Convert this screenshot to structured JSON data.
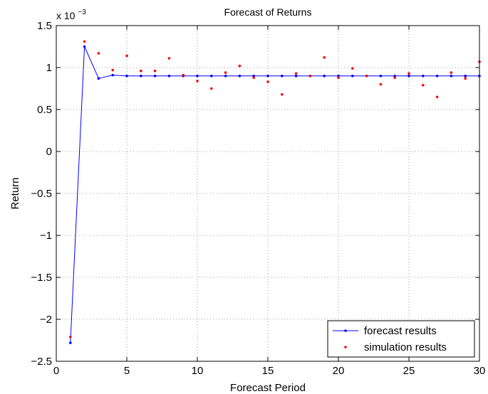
{
  "chart_data": {
    "type": "line",
    "title": "Forecast of Returns",
    "xlabel": "Forecast Period",
    "ylabel": "Return",
    "y_multiplier_label": "x 10",
    "y_multiplier_exponent": "−3",
    "xlim": [
      0,
      30
    ],
    "ylim": [
      -2.5,
      1.5
    ],
    "grid": true,
    "legend_position": "bottom-right",
    "x_ticks": [
      0,
      5,
      10,
      15,
      20,
      25,
      30
    ],
    "x_tick_labels": [
      "0",
      "5",
      "10",
      "15",
      "20",
      "25",
      "30"
    ],
    "y_ticks": [
      -2.5,
      -2,
      -1.5,
      -1,
      -0.5,
      0,
      0.5,
      1,
      1.5
    ],
    "y_tick_labels": [
      "−2.5",
      "−2",
      "−1.5",
      "−1",
      "−0.5",
      "0",
      "0.5",
      "1",
      "1.5"
    ],
    "series": [
      {
        "name": "forecast results",
        "style": "line-dots",
        "color": "#0000ff",
        "x": [
          1,
          2,
          3,
          4,
          5,
          6,
          7,
          8,
          9,
          10,
          11,
          12,
          13,
          14,
          15,
          16,
          17,
          18,
          19,
          20,
          21,
          22,
          23,
          24,
          25,
          26,
          27,
          28,
          29,
          30
        ],
        "values": [
          -2.28,
          1.25,
          0.87,
          0.91,
          0.9,
          0.9,
          0.9,
          0.9,
          0.9,
          0.9,
          0.9,
          0.9,
          0.9,
          0.9,
          0.9,
          0.9,
          0.9,
          0.9,
          0.9,
          0.9,
          0.9,
          0.9,
          0.9,
          0.9,
          0.9,
          0.9,
          0.9,
          0.9,
          0.9,
          0.9
        ]
      },
      {
        "name": "simulation results",
        "style": "dots",
        "color": "#ff0000",
        "x": [
          1,
          2,
          3,
          4,
          5,
          6,
          7,
          8,
          9,
          10,
          11,
          12,
          13,
          14,
          15,
          16,
          17,
          18,
          19,
          20,
          21,
          22,
          23,
          24,
          25,
          26,
          27,
          28,
          29,
          30
        ],
        "values": [
          -2.21,
          1.31,
          1.17,
          0.97,
          1.14,
          0.96,
          0.96,
          1.11,
          0.91,
          0.84,
          0.75,
          0.94,
          1.02,
          0.88,
          0.83,
          0.68,
          0.93,
          0.9,
          1.12,
          0.88,
          0.99,
          0.9,
          0.8,
          0.88,
          0.93,
          0.79,
          0.65,
          0.94,
          0.87,
          1.07
        ]
      }
    ]
  }
}
